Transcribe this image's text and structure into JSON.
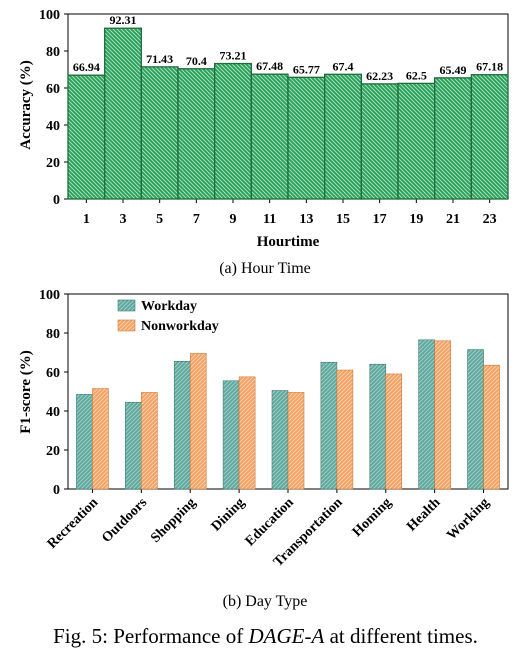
{
  "figure": {
    "caption_prefix": "Fig. 5: Performance of ",
    "caption_method": "DAGE-A",
    "caption_suffix": " at different times."
  },
  "chart_data": [
    {
      "type": "bar",
      "subcaption": "(a) Hour Time",
      "xlabel": "Hourtime",
      "ylabel": "Accuracy (%)",
      "ylim": [
        0,
        100
      ],
      "yticks": [
        0,
        20,
        40,
        60,
        80,
        100
      ],
      "categories": [
        "1",
        "3",
        "5",
        "7",
        "9",
        "11",
        "13",
        "15",
        "17",
        "19",
        "21",
        "23"
      ],
      "values": [
        66.94,
        92.31,
        71.43,
        70.4,
        73.21,
        67.48,
        65.77,
        67.4,
        62.23,
        62.5,
        65.49,
        67.18
      ],
      "value_labels": [
        "66.94",
        "92.31",
        "71.43",
        "70.4",
        "73.21",
        "67.48",
        "65.77",
        "67.4",
        "62.23",
        "62.5",
        "65.49",
        "67.18"
      ],
      "colors": {
        "fill": "#29a35a",
        "stroke": "#1e6b3c",
        "hatch": "#e6f5ea"
      },
      "grid": false,
      "legend": "none"
    },
    {
      "type": "bar",
      "subcaption": "(b) Day Type",
      "xlabel": "",
      "ylabel": "F1-score (%)",
      "ylim": [
        0,
        100
      ],
      "yticks": [
        0,
        20,
        40,
        60,
        80,
        100
      ],
      "categories": [
        "Recreation",
        "Outdoors",
        "Shopping",
        "Dining",
        "Education",
        "Transportation",
        "Homing",
        "Health",
        "Working"
      ],
      "series": [
        {
          "name": "Workday",
          "values": [
            48.5,
            44.5,
            65.5,
            55.5,
            50.5,
            65,
            64,
            76.5,
            71.5
          ]
        },
        {
          "name": "Nonworkday",
          "values": [
            51.5,
            49.5,
            69.5,
            57.5,
            49.5,
            61,
            59,
            76,
            63.5
          ]
        }
      ],
      "colors": {
        "workday": "#5fa89e",
        "nonworkday": "#f5a162"
      },
      "grid": false,
      "legend": "top-left"
    }
  ]
}
